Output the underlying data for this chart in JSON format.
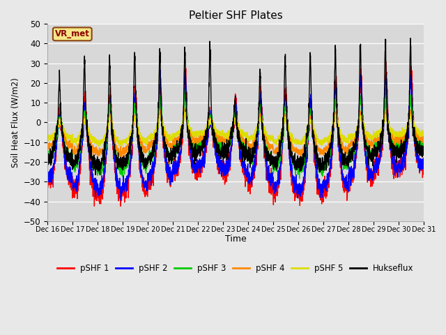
{
  "title": "Peltier SHF Plates",
  "ylabel": "Soil Heat Flux (W/m2)",
  "xlabel": "Time",
  "ylim": [
    -50,
    50
  ],
  "yticks": [
    -50,
    -40,
    -30,
    -20,
    -10,
    0,
    10,
    20,
    30,
    40,
    50
  ],
  "fig_facecolor": "#e8e8e8",
  "ax_facecolor": "#d8d8d8",
  "grid_color": "#ffffff",
  "annotation_text": "VR_met",
  "annotation_bg": "#f5e688",
  "annotation_border": "#8b4513",
  "annotation_text_color": "#8b0000",
  "series_colors": {
    "pSHF 1": "#ff0000",
    "pSHF 2": "#0000ff",
    "pSHF 3": "#00cc00",
    "pSHF 4": "#ff8800",
    "pSHF 5": "#dddd00",
    "Hukseflux": "#000000"
  },
  "figsize": [
    6.4,
    4.8
  ],
  "dpi": 100
}
